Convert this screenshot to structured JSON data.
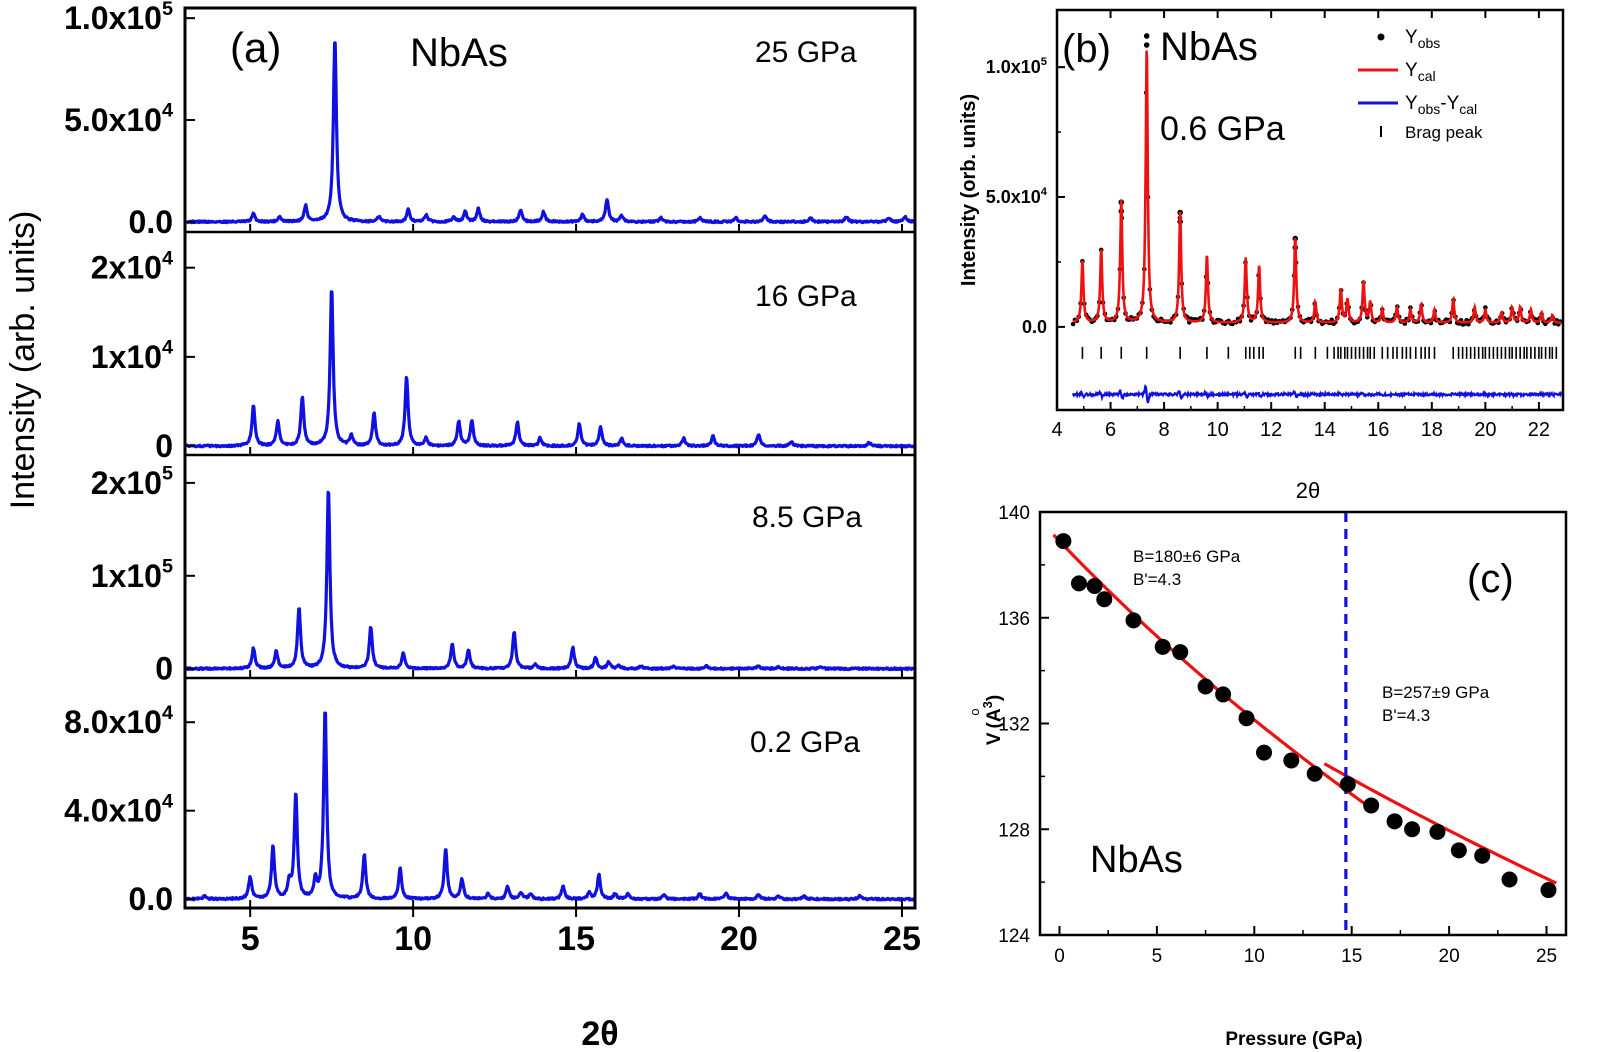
{
  "chart_data": [
    {
      "id": "a",
      "type": "line",
      "panel_label": "(a)",
      "sample": "NbAs",
      "xlabel": "2θ",
      "ylabel": "Intensity (arb. units)",
      "xlim": [
        3,
        25.4
      ],
      "xticks": [
        5,
        10,
        15,
        20,
        25
      ],
      "line_color": "#1010e0",
      "subpanels": [
        {
          "pressure": "25 GPa",
          "ylim": [
            -5000,
            105000
          ],
          "yticks": [
            {
              "v": 0,
              "m": "0.0",
              "e": ""
            },
            {
              "v": 50000,
              "m": "5.0x10",
              "e": "4"
            },
            {
              "v": 100000,
              "m": "1.0x10",
              "e": "5"
            }
          ],
          "peaks": [
            [
              5.1,
              4000
            ],
            [
              5.9,
              2500
            ],
            [
              6.7,
              8000
            ],
            [
              7.6,
              91000
            ],
            [
              8.95,
              2500
            ],
            [
              9.85,
              6000
            ],
            [
              10.4,
              3500
            ],
            [
              11.25,
              2500
            ],
            [
              11.6,
              5000
            ],
            [
              12.0,
              6500
            ],
            [
              13.3,
              6000
            ],
            [
              14.0,
              5000
            ],
            [
              15.2,
              3500
            ],
            [
              15.95,
              11000
            ],
            [
              16.4,
              3000
            ],
            [
              17.6,
              2000
            ],
            [
              18.8,
              2000
            ],
            [
              19.9,
              2000
            ],
            [
              20.8,
              3000
            ],
            [
              22.2,
              2000
            ],
            [
              23.3,
              2500
            ],
            [
              24.6,
              2000
            ],
            [
              25.1,
              2500
            ]
          ]
        },
        {
          "pressure": "16 GPa",
          "ylim": [
            -1000,
            24000
          ],
          "yticks": [
            {
              "v": 0,
              "m": "0",
              "e": ""
            },
            {
              "v": 10000,
              "m": "1x10",
              "e": "4"
            },
            {
              "v": 20000,
              "m": "2x10",
              "e": "4"
            }
          ],
          "peaks": [
            [
              5.1,
              4500
            ],
            [
              5.85,
              2800
            ],
            [
              6.6,
              5500
            ],
            [
              7.5,
              17800
            ],
            [
              8.1,
              1200
            ],
            [
              8.8,
              3700
            ],
            [
              9.8,
              7800
            ],
            [
              10.4,
              900
            ],
            [
              11.4,
              2800
            ],
            [
              11.8,
              2900
            ],
            [
              13.2,
              2700
            ],
            [
              13.9,
              900
            ],
            [
              15.1,
              2500
            ],
            [
              15.75,
              2100
            ],
            [
              16.4,
              900
            ],
            [
              18.3,
              900
            ],
            [
              19.2,
              1100
            ],
            [
              20.6,
              1300
            ],
            [
              21.6,
              500
            ],
            [
              24.0,
              400
            ]
          ]
        },
        {
          "pressure": "8.5 GPa",
          "ylim": [
            -10000,
            230000
          ],
          "yticks": [
            {
              "v": 0,
              "m": "0",
              "e": ""
            },
            {
              "v": 100000,
              "m": "1x10",
              "e": "5"
            },
            {
              "v": 200000,
              "m": "2x10",
              "e": "5"
            }
          ],
          "peaks": [
            [
              5.1,
              22000
            ],
            [
              5.8,
              19000
            ],
            [
              6.5,
              66000
            ],
            [
              7.4,
              195000
            ],
            [
              8.7,
              45000
            ],
            [
              9.7,
              17000
            ],
            [
              11.2,
              26000
            ],
            [
              11.7,
              20000
            ],
            [
              13.1,
              40000
            ],
            [
              13.75,
              5000
            ],
            [
              14.9,
              23000
            ],
            [
              15.6,
              12000
            ],
            [
              16.0,
              7000
            ],
            [
              16.3,
              4000
            ],
            [
              17.0,
              3000
            ],
            [
              18.0,
              3000
            ],
            [
              19.0,
              3000
            ],
            [
              20.6,
              3000
            ],
            [
              21.2,
              2500
            ],
            [
              22.5,
              2000
            ]
          ]
        },
        {
          "pressure": "0.2 GPa",
          "ylim": [
            -4000,
            100000
          ],
          "yticks": [
            {
              "v": 0,
              "m": "0.0",
              "e": ""
            },
            {
              "v": 40000,
              "m": "4.0x10",
              "e": "4"
            },
            {
              "v": 80000,
              "m": "8.0x10",
              "e": "4"
            }
          ],
          "peaks": [
            [
              3.6,
              1500
            ],
            [
              5.0,
              10000
            ],
            [
              5.7,
              24000
            ],
            [
              6.2,
              7000
            ],
            [
              6.4,
              48000
            ],
            [
              7.0,
              8000
            ],
            [
              7.3,
              86000
            ],
            [
              8.5,
              20000
            ],
            [
              9.6,
              14000
            ],
            [
              11.0,
              23000
            ],
            [
              11.5,
              9000
            ],
            [
              12.3,
              2500
            ],
            [
              12.9,
              5500
            ],
            [
              13.3,
              3000
            ],
            [
              13.6,
              2500
            ],
            [
              14.6,
              6000
            ],
            [
              15.4,
              3000
            ],
            [
              15.7,
              11000
            ],
            [
              16.2,
              2500
            ],
            [
              16.6,
              2500
            ],
            [
              17.7,
              2000
            ],
            [
              18.8,
              2500
            ],
            [
              19.6,
              3000
            ],
            [
              20.6,
              2000
            ],
            [
              21.2,
              1500
            ],
            [
              22.0,
              1500
            ],
            [
              23.7,
              1500
            ]
          ]
        }
      ]
    },
    {
      "id": "b",
      "type": "line",
      "panel_label": "(b)",
      "sample": "NbAs",
      "pressure": "0.6 GPa",
      "xlabel": "2θ",
      "ylabel": "Intensity (orb. units)",
      "xlim": [
        4,
        22.9
      ],
      "ylim": [
        -32000,
        122000
      ],
      "xticks": [
        4,
        6,
        8,
        10,
        12,
        14,
        16,
        18,
        20,
        22
      ],
      "yticks": [
        {
          "v": 0,
          "m": "0.0",
          "e": ""
        },
        {
          "v": 50000,
          "m": "5.0x10",
          "e": "4"
        },
        {
          "v": 100000,
          "m": "1.0x10",
          "e": "5"
        }
      ],
      "legend": {
        "position": "top-right",
        "entries": [
          {
            "label": "Y",
            "sub": "obs",
            "kind": "dot",
            "color": "#000000"
          },
          {
            "label": "Y",
            "sub": "cal",
            "kind": "line",
            "color": "#ee1111"
          },
          {
            "label": "Y",
            "sub": "obs",
            "mid": "-Y",
            "sub2": "cal",
            "kind": "line",
            "color": "#1010e0"
          },
          {
            "label": "Brag peak",
            "sub": "",
            "kind": "tick",
            "color": "#000000"
          }
        ]
      },
      "peaks": [
        [
          4.95,
          24000
        ],
        [
          5.65,
          28000
        ],
        [
          6.4,
          47000
        ],
        [
          7.35,
          106000
        ],
        [
          8.6,
          43000
        ],
        [
          9.6,
          26000
        ],
        [
          11.05,
          25000
        ],
        [
          11.55,
          22000
        ],
        [
          12.9,
          33000
        ],
        [
          13.65,
          8000
        ],
        [
          14.6,
          13000
        ],
        [
          14.85,
          9000
        ],
        [
          15.45,
          16000
        ],
        [
          15.7,
          8000
        ],
        [
          16.15,
          5000
        ],
        [
          16.7,
          6000
        ],
        [
          17.2,
          5000
        ],
        [
          17.6,
          7000
        ],
        [
          18.1,
          5000
        ],
        [
          18.8,
          9000
        ],
        [
          19.6,
          6000
        ],
        [
          20.0,
          5000
        ],
        [
          20.6,
          4000
        ],
        [
          21.0,
          6000
        ],
        [
          21.3,
          6000
        ],
        [
          21.7,
          5000
        ],
        [
          22.1,
          4000
        ],
        [
          22.5,
          3000
        ]
      ],
      "obs_peak_max": [
        [
          7.35,
          112000
        ],
        [
          6.4,
          48000
        ],
        [
          8.6,
          44000
        ],
        [
          12.9,
          34000
        ]
      ],
      "bragg_positions": [
        4.95,
        5.65,
        6.4,
        7.35,
        8.6,
        9.6,
        10.4,
        11.05,
        11.2,
        11.35,
        11.55,
        11.7,
        12.9,
        13.1,
        13.65,
        14.1,
        14.35,
        14.5,
        14.6,
        14.75,
        14.85,
        15.0,
        15.15,
        15.3,
        15.45,
        15.6,
        15.7,
        15.85,
        16.15,
        16.35,
        16.55,
        16.7,
        16.9,
        17.05,
        17.2,
        17.4,
        17.6,
        17.75,
        17.9,
        18.1,
        18.8,
        19.0,
        19.15,
        19.3,
        19.45,
        19.6,
        19.75,
        19.9,
        20.0,
        20.15,
        20.3,
        20.45,
        20.6,
        20.75,
        20.9,
        21.0,
        21.15,
        21.3,
        21.45,
        21.55,
        21.7,
        21.85,
        22.0,
        22.1,
        22.25,
        22.4,
        22.5,
        22.65
      ],
      "bragg_level": -10000,
      "diff_baseline": -26000
    },
    {
      "id": "c",
      "type": "scatter",
      "panel_label": "(c)",
      "sample": "NbAs",
      "xlabel": "Pressure (GPa)",
      "ylabel": "V (Å³)",
      "ylabel_parts": {
        "v": "V",
        "open": "(",
        "a": "A",
        "ring": "o",
        "exp": "3",
        "close": ")"
      },
      "xlim": [
        -1,
        26
      ],
      "ylim": [
        124,
        140
      ],
      "xticks": [
        0,
        5,
        10,
        15,
        20,
        25
      ],
      "yticks": [
        124,
        128,
        132,
        136,
        140
      ],
      "points": [
        [
          0.2,
          138.9
        ],
        [
          1.0,
          137.3
        ],
        [
          1.8,
          137.2
        ],
        [
          2.3,
          136.7
        ],
        [
          3.8,
          135.9
        ],
        [
          5.3,
          134.9
        ],
        [
          6.2,
          134.7
        ],
        [
          7.5,
          133.4
        ],
        [
          8.4,
          133.1
        ],
        [
          9.6,
          132.2
        ],
        [
          10.5,
          130.9
        ],
        [
          11.9,
          130.6
        ],
        [
          13.1,
          130.1
        ],
        [
          14.8,
          129.7
        ],
        [
          16.0,
          128.9
        ],
        [
          17.2,
          128.3
        ],
        [
          18.1,
          128.0
        ],
        [
          19.4,
          127.9
        ],
        [
          20.5,
          127.2
        ],
        [
          21.7,
          127.0
        ],
        [
          23.1,
          126.1
        ],
        [
          25.1,
          125.7
        ]
      ],
      "fit_low": {
        "from": -0.3,
        "to": 16.2,
        "V0": 138.9,
        "B": 180,
        "Bp": 4.3
      },
      "fit_high": {
        "from": 13.6,
        "to": 25.5,
        "V0": 136.86,
        "B": 257,
        "Bp": 4.3
      },
      "transition_pressure": 14.7,
      "annotations": [
        {
          "line1": "B=180±6 GPa",
          "line2": "B'=4.3"
        },
        {
          "line1": "B=257±9 GPa",
          "line2": "B'=4.3"
        }
      ],
      "colors": {
        "fit": "#ee1111",
        "points": "#000000",
        "transition": "#1010e0"
      }
    }
  ]
}
